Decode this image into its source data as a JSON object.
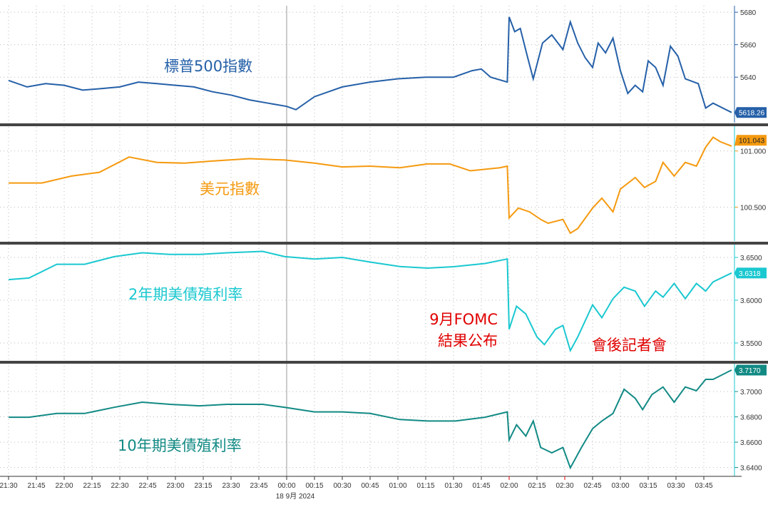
{
  "chart_data": {
    "type": "line",
    "x_range": [
      "21:30",
      "04:04"
    ],
    "x_ticks": [
      "21:30",
      "21:45",
      "22:00",
      "22:15",
      "22:30",
      "22:45",
      "23:00",
      "23:15",
      "23:30",
      "23:45",
      "00:00",
      "00:15",
      "00:30",
      "00:45",
      "01:00",
      "01:15",
      "01:30",
      "01:45",
      "02:00",
      "02:15",
      "02:30",
      "02:45",
      "03:00",
      "03:15",
      "03:30",
      "03:45"
    ],
    "date_label": "18 9月 2024",
    "annotations": [
      {
        "lines": [
          "9月FOMC",
          "結果公布"
        ],
        "at": "02:00"
      },
      {
        "lines": [
          "會後記者會"
        ],
        "at": "02:30"
      }
    ],
    "panels": [
      {
        "name": "標普500指數",
        "color": "#2560a8",
        "ylim": [
          5612,
          5684
        ],
        "yticks": [
          "5680",
          "5660",
          "5640"
        ],
        "last_label": "5618.26",
        "points": [
          [
            "21:30",
            5638
          ],
          [
            "21:40",
            5634
          ],
          [
            "21:50",
            5636
          ],
          [
            "22:00",
            5635
          ],
          [
            "22:10",
            5632
          ],
          [
            "22:20",
            5633
          ],
          [
            "22:30",
            5634
          ],
          [
            "22:40",
            5637
          ],
          [
            "22:50",
            5636
          ],
          [
            "23:00",
            5635
          ],
          [
            "23:10",
            5634
          ],
          [
            "23:20",
            5631
          ],
          [
            "23:30",
            5629
          ],
          [
            "23:40",
            5626
          ],
          [
            "23:50",
            5624
          ],
          [
            "00:00",
            5622
          ],
          [
            "00:05",
            5620
          ],
          [
            "00:15",
            5628
          ],
          [
            "00:30",
            5634
          ],
          [
            "00:45",
            5637
          ],
          [
            "01:00",
            5639
          ],
          [
            "01:15",
            5640
          ],
          [
            "01:30",
            5640
          ],
          [
            "01:40",
            5644
          ],
          [
            "01:45",
            5645
          ],
          [
            "01:50",
            5640
          ],
          [
            "01:59",
            5637
          ],
          [
            "02:00",
            5677
          ],
          [
            "02:03",
            5668
          ],
          [
            "02:06",
            5670
          ],
          [
            "02:10",
            5652
          ],
          [
            "02:13",
            5639
          ],
          [
            "02:18",
            5661
          ],
          [
            "02:23",
            5666
          ],
          [
            "02:29",
            5657
          ],
          [
            "02:33",
            5674
          ],
          [
            "02:37",
            5661
          ],
          [
            "02:41",
            5652
          ],
          [
            "02:45",
            5646
          ],
          [
            "02:48",
            5661
          ],
          [
            "02:52",
            5655
          ],
          [
            "02:56",
            5664
          ],
          [
            "03:00",
            5644
          ],
          [
            "03:04",
            5630
          ],
          [
            "03:08",
            5635
          ],
          [
            "03:12",
            5631
          ],
          [
            "03:15",
            5650
          ],
          [
            "03:19",
            5646
          ],
          [
            "03:23",
            5635
          ],
          [
            "03:27",
            5659
          ],
          [
            "03:31",
            5653
          ],
          [
            "03:35",
            5639
          ],
          [
            "03:42",
            5636
          ],
          [
            "03:46",
            5621
          ],
          [
            "03:50",
            5624
          ],
          [
            "04:00",
            5618.26
          ]
        ]
      },
      {
        "name": "美元指數",
        "color": "#f59a10",
        "ylim": [
          100.2,
          101.22
        ],
        "yticks": [
          "101.000",
          "100.500"
        ],
        "last_label": "101.043",
        "points": [
          [
            "21:30",
            100.716
          ],
          [
            "21:48",
            100.716
          ],
          [
            "22:04",
            100.777
          ],
          [
            "22:19",
            100.811
          ],
          [
            "22:35",
            100.946
          ],
          [
            "22:50",
            100.899
          ],
          [
            "23:05",
            100.892
          ],
          [
            "23:21",
            100.912
          ],
          [
            "23:40",
            100.932
          ],
          [
            "23:59",
            100.92
          ],
          [
            "00:15",
            100.892
          ],
          [
            "00:30",
            100.858
          ],
          [
            "00:45",
            100.865
          ],
          [
            "01:01",
            100.851
          ],
          [
            "01:16",
            100.885
          ],
          [
            "01:28",
            100.885
          ],
          [
            "01:39",
            100.824
          ],
          [
            "01:55",
            100.851
          ],
          [
            "01:59",
            100.865
          ],
          [
            "02:00",
            100.405
          ],
          [
            "02:05",
            100.493
          ],
          [
            "02:11",
            100.459
          ],
          [
            "02:17",
            100.392
          ],
          [
            "02:21",
            100.358
          ],
          [
            "02:29",
            100.392
          ],
          [
            "02:33",
            100.27
          ],
          [
            "02:37",
            100.311
          ],
          [
            "02:45",
            100.493
          ],
          [
            "02:50",
            100.581
          ],
          [
            "02:56",
            100.459
          ],
          [
            "03:00",
            100.662
          ],
          [
            "03:08",
            100.764
          ],
          [
            "03:13",
            100.676
          ],
          [
            "03:19",
            100.73
          ],
          [
            "03:23",
            100.899
          ],
          [
            "03:29",
            100.777
          ],
          [
            "03:35",
            100.899
          ],
          [
            "03:41",
            100.865
          ],
          [
            "03:46",
            101.034
          ],
          [
            "03:50",
            101.122
          ],
          [
            "03:54",
            101.081
          ],
          [
            "04:00",
            101.043
          ]
        ]
      },
      {
        "name": "2年期美債殖利率",
        "color": "#1ac8d0",
        "ylim": [
          3.53,
          3.665
        ],
        "yticks": [
          "3.6500",
          "3.6000",
          "3.5500"
        ],
        "last_label": "3.6318",
        "points": [
          [
            "21:30",
            3.6241
          ],
          [
            "21:41",
            3.6259
          ],
          [
            "21:56",
            3.642
          ],
          [
            "22:11",
            3.642
          ],
          [
            "22:27",
            3.6509
          ],
          [
            "22:42",
            3.6554
          ],
          [
            "22:57",
            3.6536
          ],
          [
            "23:13",
            3.6536
          ],
          [
            "23:28",
            3.6554
          ],
          [
            "23:47",
            3.6571
          ],
          [
            "23:59",
            3.6509
          ],
          [
            "00:15",
            3.6482
          ],
          [
            "00:30",
            3.65
          ],
          [
            "00:45",
            3.6446
          ],
          [
            "01:01",
            3.6393
          ],
          [
            "01:16",
            3.6375
          ],
          [
            "01:31",
            3.6393
          ],
          [
            "01:47",
            3.6429
          ],
          [
            "01:59",
            3.6482
          ],
          [
            "02:00",
            3.5661
          ],
          [
            "02:04",
            3.5929
          ],
          [
            "02:09",
            3.5839
          ],
          [
            "02:15",
            3.5571
          ],
          [
            "02:19",
            3.5482
          ],
          [
            "02:25",
            3.5661
          ],
          [
            "02:29",
            3.5705
          ],
          [
            "02:33",
            3.5411
          ],
          [
            "02:37",
            3.5571
          ],
          [
            "02:45",
            3.5946
          ],
          [
            "02:50",
            3.5795
          ],
          [
            "02:56",
            3.6018
          ],
          [
            "03:02",
            3.6152
          ],
          [
            "03:08",
            3.6107
          ],
          [
            "03:13",
            3.5929
          ],
          [
            "03:19",
            3.6107
          ],
          [
            "03:23",
            3.6036
          ],
          [
            "03:29",
            3.6196
          ],
          [
            "03:35",
            3.6018
          ],
          [
            "03:41",
            3.6196
          ],
          [
            "03:46",
            3.6107
          ],
          [
            "03:50",
            3.6214
          ],
          [
            "04:00",
            3.6318
          ]
        ]
      },
      {
        "name": "10年期美債殖利率",
        "color": "#128a84",
        "ylim": [
          3.633,
          3.722
        ],
        "yticks": [
          "3.7000",
          "3.6800",
          "3.6600",
          "3.6400"
        ],
        "last_label": "3.7170",
        "points": [
          [
            "21:30",
            3.6797
          ],
          [
            "21:41",
            3.6797
          ],
          [
            "21:56",
            3.6827
          ],
          [
            "22:11",
            3.6827
          ],
          [
            "22:27",
            3.6875
          ],
          [
            "22:42",
            3.6916
          ],
          [
            "22:57",
            3.6899
          ],
          [
            "23:13",
            3.6887
          ],
          [
            "23:28",
            3.6899
          ],
          [
            "23:47",
            3.6899
          ],
          [
            "23:59",
            3.6875
          ],
          [
            "00:15",
            3.6839
          ],
          [
            "00:30",
            3.6839
          ],
          [
            "00:45",
            3.6827
          ],
          [
            "01:01",
            3.6779
          ],
          [
            "01:16",
            3.6767
          ],
          [
            "01:31",
            3.6767
          ],
          [
            "01:47",
            3.6797
          ],
          [
            "01:59",
            3.6839
          ],
          [
            "02:00",
            3.6618
          ],
          [
            "02:04",
            3.6737
          ],
          [
            "02:09",
            3.6648
          ],
          [
            "02:13",
            3.6767
          ],
          [
            "02:17",
            3.6558
          ],
          [
            "02:23",
            3.6516
          ],
          [
            "02:29",
            3.6558
          ],
          [
            "02:33",
            3.6397
          ],
          [
            "02:39",
            3.6558
          ],
          [
            "02:45",
            3.6707
          ],
          [
            "02:50",
            3.6767
          ],
          [
            "02:56",
            3.6827
          ],
          [
            "03:02",
            3.7018
          ],
          [
            "03:08",
            3.6946
          ],
          [
            "03:12",
            3.6857
          ],
          [
            "03:17",
            3.6976
          ],
          [
            "03:23",
            3.7036
          ],
          [
            "03:29",
            3.6916
          ],
          [
            "03:35",
            3.7036
          ],
          [
            "03:41",
            3.7006
          ],
          [
            "03:46",
            3.7096
          ],
          [
            "03:50",
            3.7096
          ],
          [
            "04:00",
            3.717
          ]
        ]
      }
    ]
  }
}
